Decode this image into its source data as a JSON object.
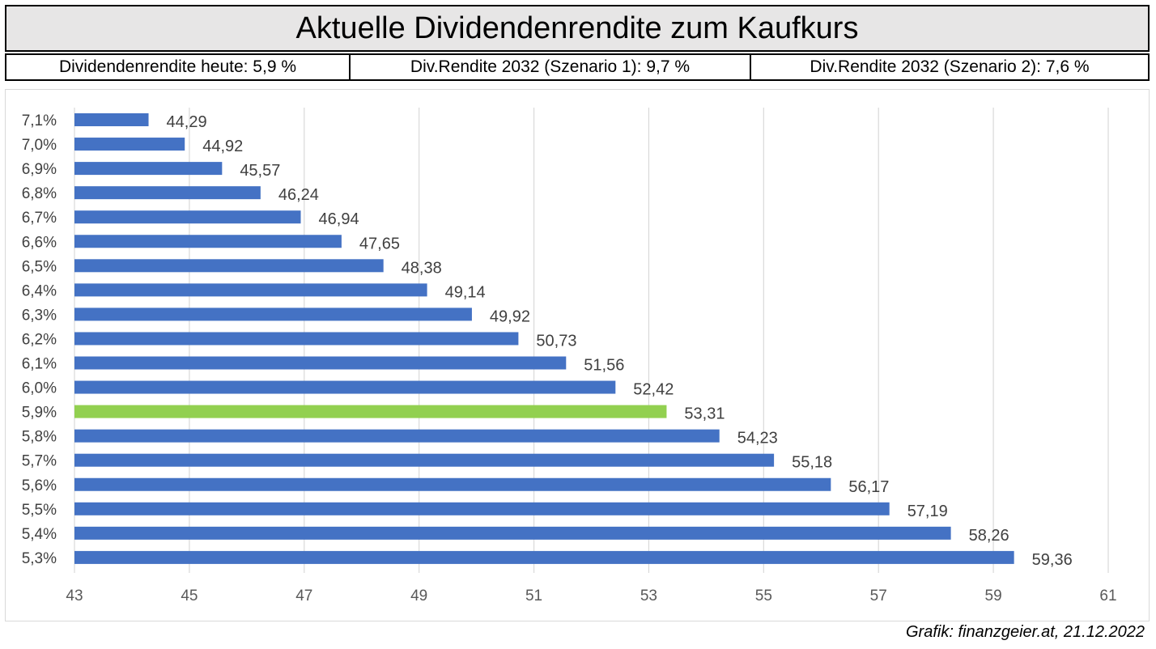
{
  "header": {
    "title": "Aktuelle Dividendenrendite zum Kaufkurs",
    "info_cells": [
      "Dividendenrendite heute: 5,9 %",
      "Div.Rendite 2032 (Szenario 1): 9,7 %",
      "Div.Rendite 2032 (Szenario 2): 7,6 %"
    ]
  },
  "credit": "Grafik: finanzgeier.at, 21.12.2022",
  "colors": {
    "bar": "#4472c4",
    "highlight": "#92d050",
    "grid": "#d9d9d9",
    "text": "#404040"
  },
  "chart_data": {
    "type": "bar",
    "orientation": "horizontal",
    "categories": [
      "7,1%",
      "7,0%",
      "6,9%",
      "6,8%",
      "6,7%",
      "6,6%",
      "6,5%",
      "6,4%",
      "6,3%",
      "6,2%",
      "6,1%",
      "6,0%",
      "5,9%",
      "5,8%",
      "5,7%",
      "5,6%",
      "5,5%",
      "5,4%",
      "5,3%"
    ],
    "values": [
      44.29,
      44.92,
      45.57,
      46.24,
      46.94,
      47.65,
      48.38,
      49.14,
      49.92,
      50.73,
      51.56,
      52.42,
      53.31,
      54.23,
      55.18,
      56.17,
      57.19,
      58.26,
      59.36
    ],
    "value_labels": [
      "44,29",
      "44,92",
      "45,57",
      "46,24",
      "46,94",
      "47,65",
      "48,38",
      "49,14",
      "49,92",
      "50,73",
      "51,56",
      "52,42",
      "53,31",
      "54,23",
      "55,18",
      "56,17",
      "57,19",
      "58,26",
      "59,36"
    ],
    "highlight_category": "5,9%",
    "xlim": [
      43,
      61
    ],
    "xticks": [
      43,
      45,
      47,
      49,
      51,
      53,
      55,
      57,
      59,
      61
    ],
    "grid": "vertical",
    "title": "",
    "xlabel": "",
    "ylabel": ""
  }
}
